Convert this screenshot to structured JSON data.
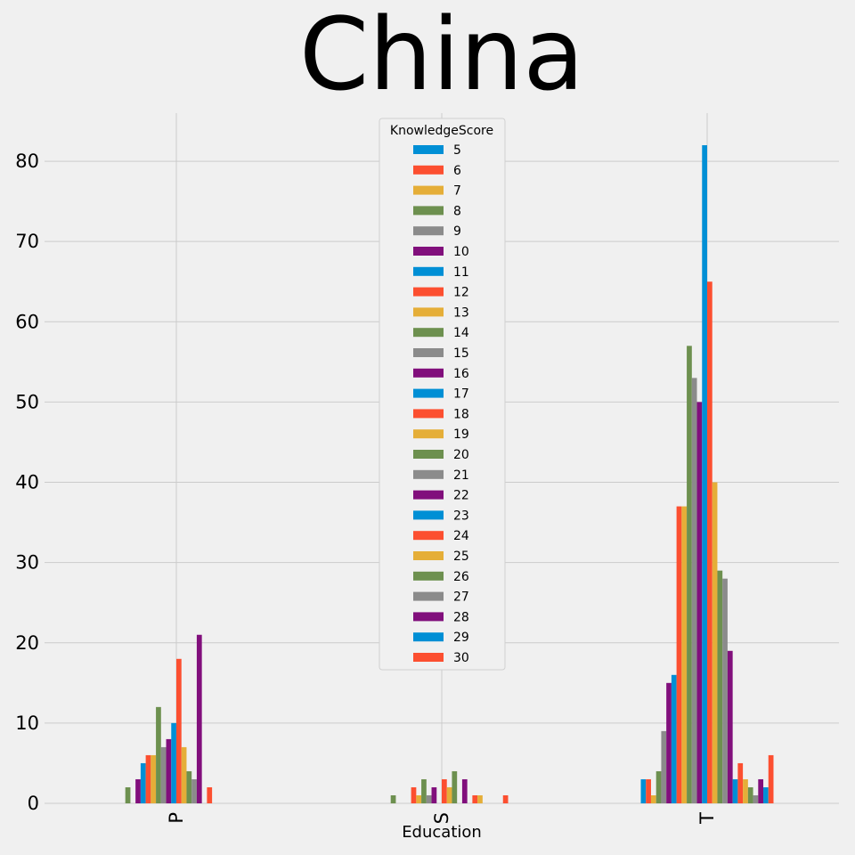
{
  "chart_data": {
    "type": "bar",
    "title": "China",
    "xlabel": "Education",
    "ylabel": "",
    "categories": [
      "P",
      "S",
      "T"
    ],
    "ylim": [
      0,
      86
    ],
    "yticks": [
      0,
      10,
      20,
      30,
      40,
      50,
      60,
      70,
      80
    ],
    "grid": true,
    "legend": {
      "title": "KnowledgeScore",
      "placement": "top-center"
    },
    "colors": [
      "#008fd5",
      "#fc4f30",
      "#e5ae38",
      "#6d904f",
      "#8b8b8b",
      "#810f7c"
    ],
    "series": [
      {
        "name": "5",
        "values": [
          0,
          0,
          3
        ]
      },
      {
        "name": "6",
        "values": [
          0,
          0,
          3
        ]
      },
      {
        "name": "7",
        "values": [
          0,
          0,
          1
        ]
      },
      {
        "name": "8",
        "values": [
          2,
          1,
          4
        ]
      },
      {
        "name": "9",
        "values": [
          0,
          0,
          9
        ]
      },
      {
        "name": "10",
        "values": [
          3,
          0,
          15
        ]
      },
      {
        "name": "11",
        "values": [
          5,
          0,
          16
        ]
      },
      {
        "name": "12",
        "values": [
          6,
          2,
          37
        ]
      },
      {
        "name": "13",
        "values": [
          6,
          1,
          37
        ]
      },
      {
        "name": "14",
        "values": [
          12,
          3,
          57
        ]
      },
      {
        "name": "15",
        "values": [
          7,
          1,
          53
        ]
      },
      {
        "name": "16",
        "values": [
          8,
          2,
          50
        ]
      },
      {
        "name": "17",
        "values": [
          10,
          0,
          82
        ]
      },
      {
        "name": "18",
        "values": [
          18,
          3,
          65
        ]
      },
      {
        "name": "19",
        "values": [
          7,
          2,
          40
        ]
      },
      {
        "name": "20",
        "values": [
          4,
          4,
          29
        ]
      },
      {
        "name": "21",
        "values": [
          3,
          0,
          28
        ]
      },
      {
        "name": "22",
        "values": [
          21,
          3,
          19
        ]
      },
      {
        "name": "23",
        "values": [
          0,
          0,
          3
        ]
      },
      {
        "name": "24",
        "values": [
          2,
          1,
          5
        ]
      },
      {
        "name": "25",
        "values": [
          0,
          1,
          3
        ]
      },
      {
        "name": "26",
        "values": [
          0,
          0,
          2
        ]
      },
      {
        "name": "27",
        "values": [
          0,
          0,
          1
        ]
      },
      {
        "name": "28",
        "values": [
          0,
          0,
          3
        ]
      },
      {
        "name": "29",
        "values": [
          0,
          0,
          2
        ]
      },
      {
        "name": "30",
        "values": [
          0,
          1,
          6
        ]
      }
    ]
  }
}
